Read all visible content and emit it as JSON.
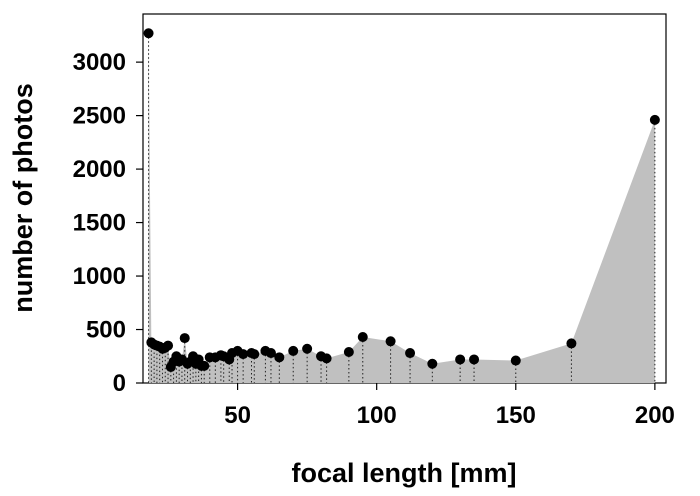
{
  "chart_data": {
    "type": "scatter",
    "title": "",
    "xlabel": "focal length [mm]",
    "ylabel": "number of photos",
    "xlim": [
      16,
      204
    ],
    "ylim": [
      0,
      3450
    ],
    "xticks": [
      50,
      100,
      150,
      200
    ],
    "yticks": [
      0,
      500,
      1000,
      1500,
      2000,
      2500,
      3000
    ],
    "fill_color": "#c0c0c0",
    "marker_color": "#000000",
    "grid": false,
    "series": [
      {
        "x": [
          18,
          19,
          20,
          21,
          22,
          23,
          24,
          25,
          26,
          27,
          28,
          29,
          30,
          31,
          32,
          33,
          34,
          35,
          36,
          37,
          38,
          40,
          42,
          44,
          45,
          47,
          48,
          50,
          52,
          55,
          56,
          60,
          62,
          65,
          70,
          75,
          80,
          82,
          90,
          95,
          105,
          112,
          120,
          130,
          135,
          150,
          170,
          200
        ],
        "y": [
          3270,
          380,
          360,
          350,
          340,
          320,
          330,
          350,
          150,
          200,
          250,
          200,
          220,
          420,
          180,
          200,
          250,
          180,
          220,
          160,
          160,
          240,
          240,
          260,
          250,
          220,
          280,
          300,
          270,
          280,
          270,
          300,
          280,
          240,
          300,
          320,
          250,
          230,
          290,
          430,
          390,
          280,
          180,
          220,
          220,
          210,
          370,
          2460
        ]
      }
    ]
  }
}
